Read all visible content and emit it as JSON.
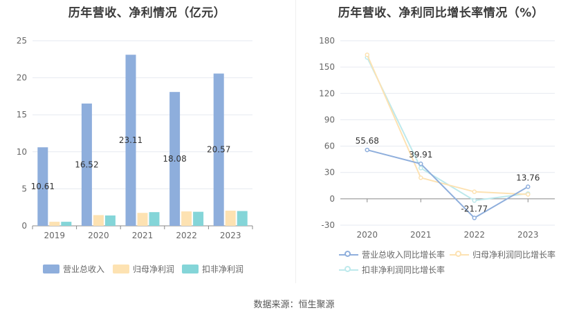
{
  "source_text": "数据来源：恒生聚源",
  "chart_data": [
    {
      "type": "bar",
      "title": "历年营收、净利情况（亿元）",
      "categories": [
        "2019",
        "2020",
        "2021",
        "2022",
        "2023"
      ],
      "ylim": [
        0,
        25
      ],
      "yticks": [
        0,
        5,
        10,
        15,
        20,
        25
      ],
      "grid": true,
      "legend_position": "bottom",
      "series": [
        {
          "name": "营业总收入",
          "color": "#8eaedc",
          "values": [
            10.61,
            16.52,
            23.11,
            18.08,
            20.57
          ],
          "labels": [
            "10.61",
            "16.52",
            "23.11",
            "18.08",
            "20.57"
          ]
        },
        {
          "name": "归母净利润",
          "color": "#fde2b2",
          "values": [
            0.55,
            1.45,
            1.75,
            1.95,
            2.05
          ]
        },
        {
          "name": "扣非净利润",
          "color": "#84d5d8",
          "values": [
            0.55,
            1.4,
            1.85,
            1.9,
            2.0
          ]
        }
      ]
    },
    {
      "type": "line",
      "title": "历年营收、净利同比增长率情况（%）",
      "categories": [
        "2020",
        "2021",
        "2022",
        "2023"
      ],
      "ylim": [
        -30,
        180
      ],
      "yticks": [
        -30,
        0,
        30,
        60,
        90,
        120,
        150,
        180
      ],
      "grid": true,
      "legend_position": "bottom",
      "series": [
        {
          "name": "营业总收入同比增长率",
          "color": "#8eaedc",
          "values": [
            55.68,
            39.91,
            -21.77,
            13.76
          ],
          "labels": [
            "55.68",
            "39.91",
            "-21.77",
            "13.76"
          ]
        },
        {
          "name": "归母净利润同比增长率",
          "color": "#fde2b2",
          "values": [
            164,
            24,
            8,
            5
          ]
        },
        {
          "name": "扣非净利润同比增长率",
          "color": "#bde9ec",
          "values": [
            161,
            35,
            -2,
            6
          ]
        }
      ]
    }
  ]
}
